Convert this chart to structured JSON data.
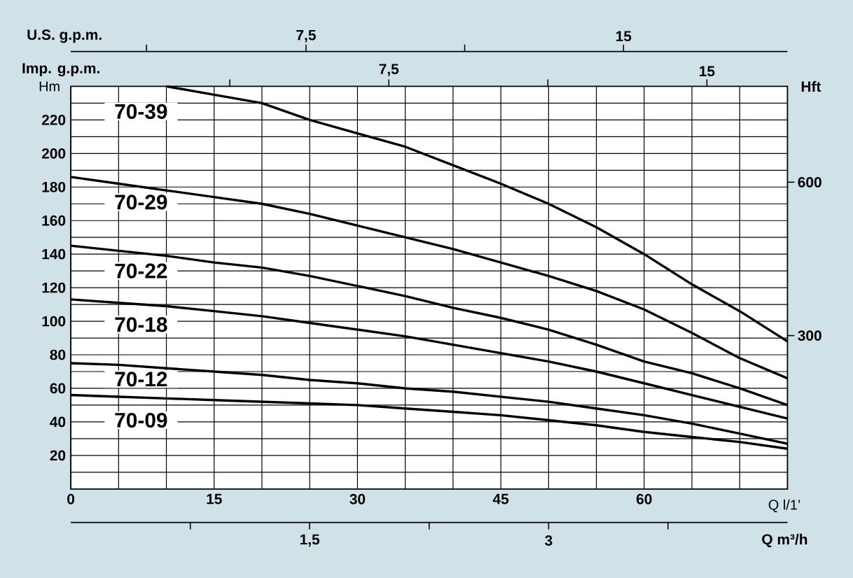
{
  "chart_data": {
    "type": "line",
    "xlabel": "Q l/1’",
    "ylabel": "Hm",
    "y2label": "Hft",
    "x2label": "Imp. g.p.m.",
    "annotations": [
      "U.S. g.p.m.",
      "7,5",
      "15",
      "Q m³/h",
      "1,5",
      "3"
    ],
    "grid": true,
    "xlim": [
      0,
      75
    ],
    "xticks": [
      0,
      {
        "value": 5,
        "label": null
      },
      {
        "value": 10,
        "label": null
      },
      15,
      {
        "value": 20,
        "label": null
      },
      {
        "value": 25,
        "label": null
      },
      30,
      {
        "value": 35,
        "label": null
      },
      {
        "value": 40,
        "label": null
      },
      45,
      {
        "value": 50,
        "label": null
      },
      {
        "value": 55,
        "label": null
      },
      60,
      {
        "value": 65,
        "label": null
      },
      {
        "value": 70,
        "label": null
      }
    ],
    "ylim": [
      0,
      240
    ],
    "yticks": [
      {
        "value": 10,
        "label": null
      },
      20,
      {
        "value": 30,
        "label": null
      },
      40,
      {
        "value": 50,
        "label": null
      },
      60,
      {
        "value": 70,
        "label": null
      },
      80,
      {
        "value": 90,
        "label": null
      },
      100,
      {
        "value": 110,
        "label": null
      },
      120,
      {
        "value": 130,
        "label": null
      },
      140,
      {
        "value": 150,
        "label": null
      },
      160,
      {
        "value": 170,
        "label": null
      },
      180,
      {
        "value": 190,
        "label": null
      },
      200,
      {
        "value": 210,
        "label": null
      },
      220,
      {
        "value": 230,
        "label": null
      }
    ],
    "y2lim": [
      0,
      787.4
    ],
    "y2ticks": [
      300,
      600
    ],
    "x2lim": [
      0,
      16.9
    ],
    "x2ticks": [
      {
        "value": 3.75,
        "label": null
      },
      {
        "value": 7.5,
        "label": "7,5"
      },
      {
        "value": 11.25,
        "label": null
      },
      15
    ],
    "x": [
      0,
      5,
      10,
      15,
      20,
      25,
      30,
      35,
      40,
      45,
      50,
      55,
      60,
      65,
      70,
      75
    ],
    "series": [
      {
        "name": "70-39",
        "color": "#000000",
        "x": [
          10,
          15,
          20,
          25,
          30,
          35,
          40,
          45,
          50,
          55,
          60,
          65,
          70,
          75
        ],
        "values": [
          240,
          235,
          230,
          220,
          212,
          204,
          193,
          182,
          170,
          156,
          140,
          122,
          106,
          88
        ]
      },
      {
        "name": "70-29",
        "color": "#000000",
        "values": [
          186,
          182,
          178,
          174,
          170,
          164,
          157,
          150,
          143,
          135,
          127,
          118,
          107,
          93,
          78,
          66
        ]
      },
      {
        "name": "70-22",
        "color": "#000000",
        "values": [
          145,
          142,
          139,
          135,
          132,
          127,
          121,
          115,
          108,
          102,
          95,
          86,
          76,
          69,
          60,
          50
        ]
      },
      {
        "name": "70-18",
        "color": "#000000",
        "values": [
          113,
          111,
          109,
          106,
          103,
          99,
          95,
          91,
          86,
          81,
          76,
          70,
          63,
          56,
          49,
          42
        ]
      },
      {
        "name": "70-12",
        "color": "#000000",
        "values": [
          75,
          74,
          72,
          70,
          68,
          65,
          63,
          60,
          58,
          55,
          52,
          48,
          44,
          39,
          33,
          27
        ]
      },
      {
        "name": "70-09",
        "color": "#000000",
        "values": [
          56,
          55,
          54,
          53,
          52,
          51,
          50,
          48,
          46,
          44,
          41,
          38,
          34,
          31,
          28,
          24
        ]
      }
    ]
  }
}
